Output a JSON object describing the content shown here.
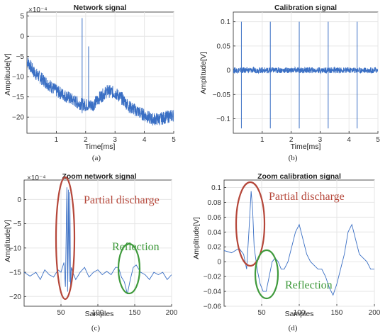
{
  "chart_data": [
    {
      "type": "line",
      "panel": "a",
      "title": "Network signal",
      "xlabel": "Time[ms]",
      "ylabel": "Amplitude[V]",
      "exponent_label": "×10⁻⁴",
      "caption": "(a)",
      "xlim": [
        0,
        5
      ],
      "ylim": [
        -24,
        6
      ],
      "xticks": [
        1,
        2,
        3,
        4,
        5
      ],
      "yticks": [
        5,
        0,
        -5,
        -10,
        -15,
        -20
      ],
      "grid": true,
      "series": [
        {
          "color": "#3a6fc4",
          "band": true,
          "x": [
            0.0,
            0.25,
            0.5,
            0.75,
            1.0,
            1.25,
            1.5,
            1.75,
            2.0,
            2.25,
            2.5,
            2.75,
            3.0,
            3.25,
            3.5,
            3.75,
            4.0,
            4.25,
            4.5,
            4.75,
            5.0
          ],
          "y": [
            -6.0,
            -9.0,
            -10.5,
            -12.0,
            -13.5,
            -14.5,
            -15.5,
            -16.5,
            -17.0,
            -17.0,
            -15.0,
            -13.5,
            -14.0,
            -15.5,
            -17.5,
            -18.5,
            -19.5,
            -20.5,
            -20.5,
            -20.0,
            -19.5
          ],
          "spread": 1.6,
          "spikes": [
            {
              "x": 1.88,
              "top": 4.5,
              "bottom": -19.0
            },
            {
              "x": 2.1,
              "top": -2.5,
              "bottom": -18.0
            }
          ]
        }
      ]
    },
    {
      "type": "line",
      "panel": "b",
      "title": "Calibration signal",
      "xlabel": "Time[ms]",
      "ylabel": "Amplitude[V]",
      "caption": "(b)",
      "xlim": [
        0,
        5
      ],
      "ylim": [
        -0.13,
        0.12
      ],
      "xticks": [
        1,
        2,
        3,
        4,
        5
      ],
      "yticks": [
        0.1,
        0.05,
        0,
        -0.05,
        -0.1
      ],
      "grid": true,
      "series": [
        {
          "color": "#3a6fc4",
          "band": true,
          "x": [
            0,
            5
          ],
          "y": [
            0,
            0
          ],
          "spread": 0.006,
          "spikes": [
            {
              "x": 0.28,
              "top": 0.1,
              "bottom": -0.12
            },
            {
              "x": 1.28,
              "top": 0.1,
              "bottom": -0.12
            },
            {
              "x": 2.28,
              "top": 0.1,
              "bottom": -0.12
            },
            {
              "x": 3.28,
              "top": 0.1,
              "bottom": -0.12
            },
            {
              "x": 4.28,
              "top": 0.1,
              "bottom": -0.12
            }
          ]
        }
      ]
    },
    {
      "type": "line",
      "panel": "c",
      "title": "Zoom network signal",
      "xlabel": "Samples",
      "ylabel": "Amplitude[V]",
      "exponent_label": "×10⁻⁴",
      "caption": "(c)",
      "xlim": [
        0,
        200
      ],
      "ylim": [
        -22,
        4
      ],
      "xticks": [
        50,
        100,
        150,
        200
      ],
      "yticks": [
        0,
        -5,
        -10,
        -15,
        -20
      ],
      "grid": true,
      "series": [
        {
          "color": "#3a6fc4",
          "x": [
            0,
            8,
            16,
            22,
            28,
            34,
            40,
            46,
            50,
            54,
            56,
            58,
            59,
            60,
            61,
            62,
            63,
            64,
            66,
            70,
            76,
            82,
            88,
            94,
            100,
            106,
            112,
            118,
            124,
            128,
            132,
            136,
            140,
            144,
            148,
            152,
            158,
            164,
            170,
            176,
            182,
            188,
            194,
            200
          ],
          "y": [
            -15,
            -15.8,
            -15,
            -16.5,
            -14.5,
            -15.5,
            -16,
            -14.5,
            -15,
            -13,
            -18,
            2.5,
            -19,
            2,
            -17,
            1.5,
            -18,
            -14,
            -15,
            -16.5,
            -15,
            -14,
            -16,
            -15,
            -14.5,
            -15.5,
            -14.8,
            -15.5,
            -14,
            -14,
            -16,
            -17,
            -19.5,
            -16.5,
            -14,
            -13.5,
            -15,
            -15.5,
            -16.5,
            -15,
            -15.5,
            -15,
            -16.5,
            -15.5
          ]
        }
      ]
    },
    {
      "type": "line",
      "panel": "d",
      "title": "Zoom calibration signal",
      "xlabel": "Samples",
      "ylabel": "Amplitude[V]",
      "caption": "(d)",
      "xlim": [
        0,
        200
      ],
      "ylim": [
        -0.06,
        0.11
      ],
      "xticks": [
        50,
        100,
        150,
        200
      ],
      "yticks": [
        0.1,
        0.08,
        0.06,
        0.04,
        0.02,
        0,
        -0.02,
        -0.04,
        -0.06
      ],
      "grid": true,
      "series": [
        {
          "color": "#3a6fc4",
          "x": [
            0,
            10,
            20,
            26,
            30,
            33,
            36,
            38,
            40,
            44,
            48,
            52,
            56,
            60,
            64,
            68,
            72,
            76,
            80,
            85,
            90,
            95,
            100,
            105,
            110,
            115,
            120,
            125,
            130,
            135,
            140,
            145,
            150,
            155,
            160,
            165,
            170,
            175,
            180,
            185,
            190,
            195,
            200
          ],
          "y": [
            0.015,
            0.012,
            0.018,
            0.01,
            -0.01,
            0.04,
            0.095,
            0.07,
            0.02,
            -0.01,
            -0.03,
            -0.04,
            -0.04,
            -0.02,
            0.0,
            0.005,
            0.0,
            -0.01,
            -0.01,
            0.0,
            0.02,
            0.04,
            0.05,
            0.03,
            0.01,
            0.0,
            -0.005,
            -0.01,
            -0.01,
            -0.02,
            -0.035,
            -0.045,
            -0.03,
            -0.01,
            0.01,
            0.04,
            0.05,
            0.03,
            0.01,
            0.005,
            0.0,
            -0.01,
            -0.01
          ]
        }
      ]
    }
  ],
  "annotations": {
    "partial_c": "Partial discharge",
    "reflection_c": "Reflection",
    "partial_d": "Partial discharge",
    "reflection_d": "Reflection",
    "partial_color": "#b5473a",
    "reflection_color": "#3f9a3c"
  }
}
